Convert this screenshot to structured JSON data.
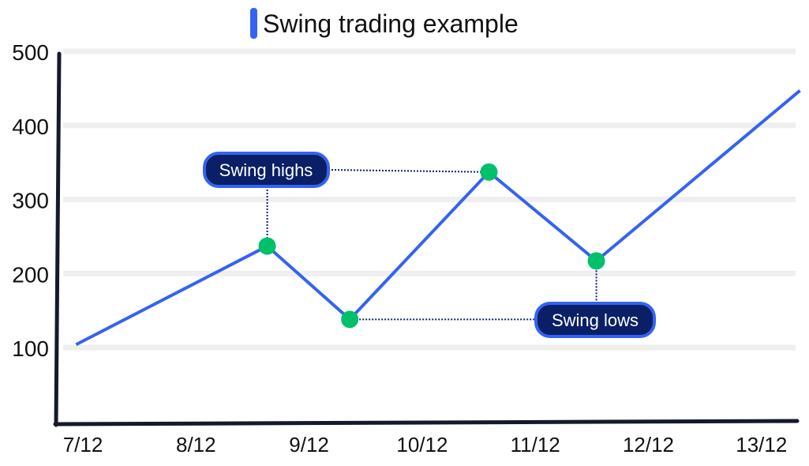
{
  "chart_data": {
    "type": "line",
    "title": "Swing trading example",
    "xlabel": "",
    "ylabel": "",
    "x_ticks": [
      "7/12",
      "8/12",
      "9/12",
      "10/12",
      "11/12",
      "12/12",
      "13/12"
    ],
    "y_ticks": [
      100,
      200,
      300,
      400,
      500
    ],
    "ylim": [
      0,
      500
    ],
    "grid": true,
    "series": [
      {
        "x": [
          6.94,
          8.63,
          9.36,
          10.59,
          11.54,
          13.34
        ],
        "y": [
          104,
          237,
          138,
          337,
          217,
          447
        ]
      }
    ],
    "swing_points": [
      {
        "index": 1,
        "kind": "high"
      },
      {
        "index": 2,
        "kind": "low"
      },
      {
        "index": 3,
        "kind": "high"
      },
      {
        "index": 4,
        "kind": "low"
      }
    ],
    "annotations": {
      "highs": "Swing highs",
      "lows": "Swing lows"
    },
    "colors": {
      "line": "#3563f0",
      "points": "#00c06a",
      "label_fill": "#0b1f66",
      "label_border": "#3563f0",
      "axis": "#151a2b",
      "grid": "#efefef"
    }
  }
}
